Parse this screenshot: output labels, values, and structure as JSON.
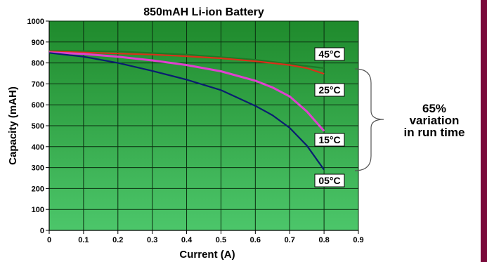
{
  "chart_data": {
    "type": "line",
    "title": "850mAH Li-ion Battery",
    "xlabel": "Current (A)",
    "ylabel": "Capacity (mAH)",
    "xlim": [
      0,
      0.9
    ],
    "ylim": [
      0,
      1000
    ],
    "xticks": [
      0,
      0.1,
      0.2,
      0.3,
      0.4,
      0.5,
      0.6,
      0.7,
      0.8,
      0.9
    ],
    "yticks": [
      0,
      100,
      200,
      300,
      400,
      500,
      600,
      700,
      800,
      900,
      1000
    ],
    "grid": true,
    "background": {
      "top": "#1f8a2c",
      "bottom": "#4cc66a"
    },
    "series": [
      {
        "name": "45°C",
        "color": "#d9301a",
        "x": [
          0,
          0.1,
          0.2,
          0.3,
          0.4,
          0.5,
          0.6,
          0.7,
          0.75,
          0.8
        ],
        "y": [
          855,
          850,
          845,
          840,
          832,
          822,
          808,
          790,
          775,
          748
        ]
      },
      {
        "name": "25°C",
        "color": "#e040d0",
        "x": [
          0,
          0.1,
          0.2,
          0.3,
          0.4,
          0.5,
          0.6,
          0.65,
          0.7,
          0.75,
          0.8
        ],
        "y": [
          850,
          843,
          830,
          812,
          790,
          760,
          715,
          683,
          640,
          568,
          475
        ]
      },
      {
        "name": "15°C",
        "color": "#0a1e70",
        "x": [
          0,
          0.1,
          0.2,
          0.3,
          0.4,
          0.5,
          0.6,
          0.65,
          0.7,
          0.75,
          0.8
        ],
        "y": [
          848,
          830,
          800,
          762,
          720,
          670,
          595,
          550,
          490,
          405,
          290
        ]
      },
      {
        "name": "05°C",
        "color": "#1c7a26",
        "x": [
          0,
          0.2,
          0.4,
          0.6,
          0.7,
          0.8
        ],
        "y": [
          858,
          855,
          840,
          815,
          795,
          775
        ]
      }
    ],
    "annotation": {
      "lines": [
        "65%",
        "variation",
        "in run time"
      ]
    }
  }
}
